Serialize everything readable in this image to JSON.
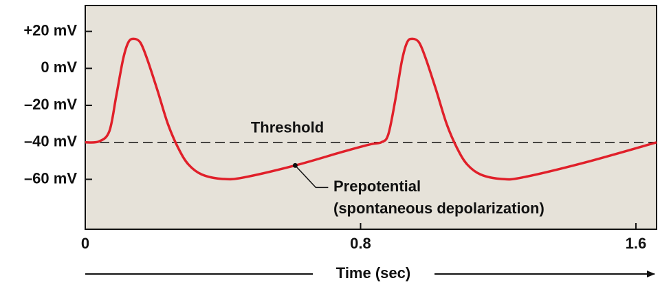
{
  "chart_data": {
    "type": "line",
    "x": [
      0,
      0.04,
      0.07,
      0.09,
      0.11,
      0.125,
      0.14,
      0.16,
      0.18,
      0.21,
      0.24,
      0.27,
      0.3,
      0.34,
      0.4,
      0.46,
      0.61,
      0.75,
      0.83,
      0.86,
      0.88,
      0.9,
      0.92,
      0.935,
      0.95,
      0.97,
      0.99,
      1.02,
      1.05,
      1.08,
      1.11,
      1.15,
      1.21,
      1.27,
      1.45,
      1.66
    ],
    "series": [
      {
        "color": "#e0202a",
        "values": [
          -40,
          -39.5,
          -34,
          -15,
          5,
          14,
          16,
          14,
          5,
          -12,
          -30,
          -43,
          -52,
          -57.5,
          -59.8,
          -59,
          -52.5,
          -45,
          -41,
          -40,
          -36,
          -18,
          4,
          14,
          16,
          14,
          5,
          -12,
          -30,
          -43,
          -52,
          -57.5,
          -59.8,
          -59,
          -51,
          -40
        ]
      }
    ],
    "xlim": [
      0,
      1.66
    ],
    "ylim": [
      -87,
      34
    ],
    "xticks": [
      0,
      0.8,
      1.6
    ],
    "yticks": [
      {
        "value": 20,
        "label": "+20 mV"
      },
      {
        "value": 0,
        "label": "0 mV"
      },
      {
        "value": -20,
        "label": "–20 mV"
      },
      {
        "value": -40,
        "label": "–40 mV"
      },
      {
        "value": -60,
        "label": "–60 mV"
      }
    ],
    "x_label": "Time (sec)",
    "threshold": {
      "label": "Threshold",
      "value": -40
    },
    "callout": {
      "lines": [
        "Prepotential",
        "(spontaneous depolarization)"
      ],
      "x": 0.61,
      "y": -52.5
    },
    "background": "#e6e2d9"
  }
}
